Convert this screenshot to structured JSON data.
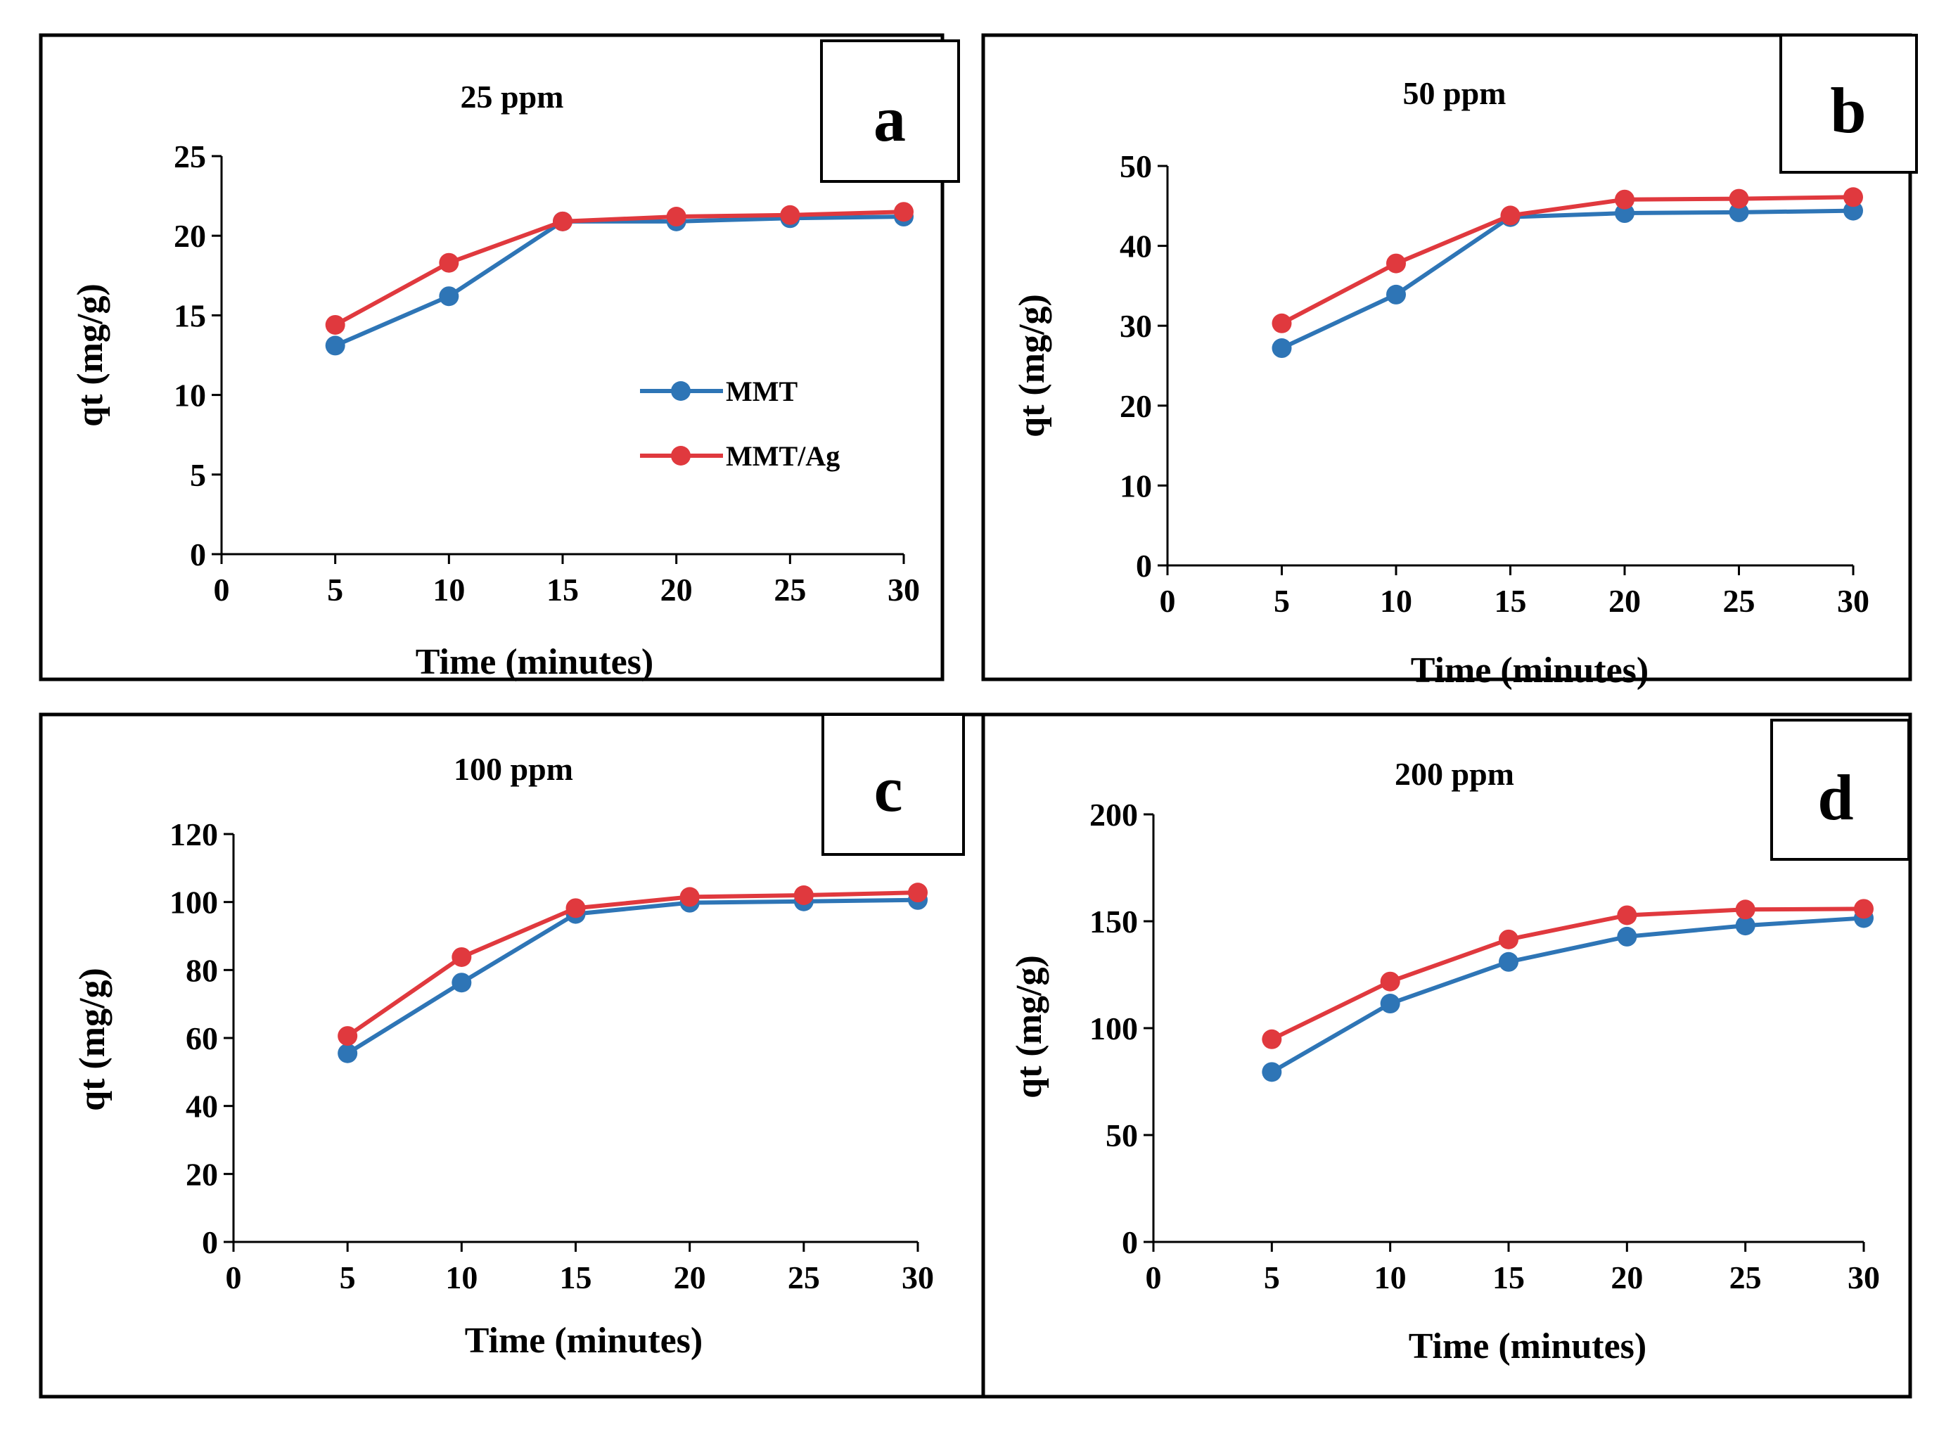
{
  "chart_data": [
    {
      "panel": "a",
      "type": "line",
      "title": "25 ppm",
      "xlabel": "Time (minutes)",
      "ylabel": "qt (mg/g)",
      "xlim": [
        0,
        30
      ],
      "ylim": [
        0,
        25
      ],
      "xticks": [
        "0",
        "5",
        "10",
        "15",
        "20",
        "25",
        "30"
      ],
      "yticks": [
        "0",
        "5",
        "10",
        "15",
        "20",
        "25"
      ],
      "x": [
        5,
        10,
        15,
        20,
        25,
        30
      ],
      "series": [
        {
          "name": "MMT",
          "color": "#2E75B6",
          "values": [
            13.1,
            16.2,
            20.9,
            20.9,
            21.1,
            21.2
          ]
        },
        {
          "name": "MMT/Ag",
          "color": "#E0393E",
          "values": [
            14.4,
            18.3,
            20.9,
            21.2,
            21.3,
            21.5
          ]
        }
      ],
      "legend": {
        "position": "center-right",
        "entries": [
          "MMT",
          "MMT/Ag"
        ]
      }
    },
    {
      "panel": "b",
      "type": "line",
      "title": "50 ppm",
      "xlabel": "Time (minutes)",
      "ylabel": "qt (mg/g)",
      "xlim": [
        0,
        30
      ],
      "ylim": [
        0,
        50
      ],
      "xticks": [
        "0",
        "5",
        "10",
        "15",
        "20",
        "25",
        "30"
      ],
      "yticks": [
        "0",
        "10",
        "20",
        "30",
        "40",
        "50"
      ],
      "x": [
        5,
        10,
        15,
        20,
        25,
        30
      ],
      "series": [
        {
          "name": "MMT",
          "color": "#2E75B6",
          "values": [
            27.2,
            33.9,
            43.6,
            44.1,
            44.2,
            44.4
          ]
        },
        {
          "name": "MMT/Ag",
          "color": "#E0393E",
          "values": [
            30.3,
            37.8,
            43.8,
            45.8,
            45.9,
            46.1
          ]
        }
      ]
    },
    {
      "panel": "c",
      "type": "line",
      "title": "100 ppm",
      "xlabel": "Time (minutes)",
      "ylabel": "qt (mg/g)",
      "xlim": [
        0,
        30
      ],
      "ylim": [
        0,
        120
      ],
      "xticks": [
        "0",
        "5",
        "10",
        "15",
        "20",
        "25",
        "30"
      ],
      "yticks": [
        "0",
        "20",
        "40",
        "60",
        "80",
        "100",
        "120"
      ],
      "x": [
        5,
        10,
        15,
        20,
        25,
        30
      ],
      "series": [
        {
          "name": "MMT",
          "color": "#2E75B6",
          "values": [
            55.5,
            76.3,
            96.5,
            99.8,
            100.2,
            100.6
          ]
        },
        {
          "name": "MMT/Ag",
          "color": "#E0393E",
          "values": [
            60.6,
            83.8,
            98.2,
            101.5,
            102.0,
            102.8
          ]
        }
      ]
    },
    {
      "panel": "d",
      "type": "line",
      "title": "200 ppm",
      "xlabel": "Time (minutes)",
      "ylabel": "qt (mg/g)",
      "xlim": [
        0,
        30
      ],
      "ylim": [
        0,
        200
      ],
      "xticks": [
        "0",
        "5",
        "10",
        "15",
        "20",
        "25",
        "30"
      ],
      "yticks": [
        "0",
        "50",
        "100",
        "150",
        "200"
      ],
      "x": [
        5,
        10,
        15,
        20,
        25,
        30
      ],
      "series": [
        {
          "name": "MMT",
          "color": "#2E75B6",
          "values": [
            79.5,
            111.5,
            131.0,
            142.8,
            148.0,
            151.5
          ]
        },
        {
          "name": "MMT/Ag",
          "color": "#E0393E",
          "values": [
            94.8,
            121.8,
            141.5,
            152.8,
            155.5,
            155.8
          ]
        }
      ]
    }
  ]
}
